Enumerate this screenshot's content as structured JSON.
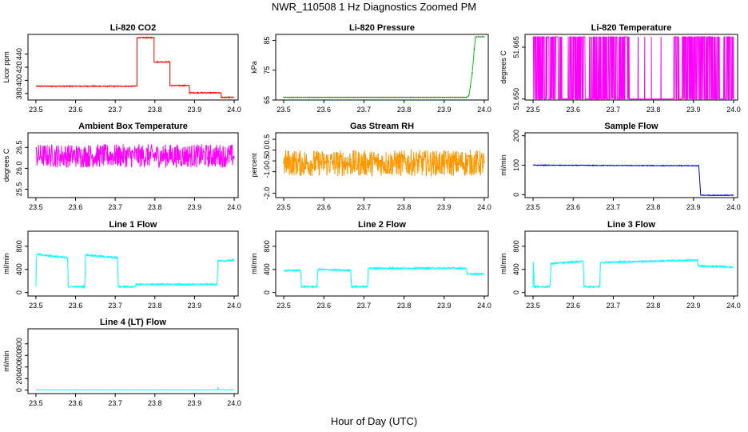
{
  "figure": {
    "title": "NWR_110508  1 Hz Diagnostics Zoomed PM",
    "xlabel": "Hour of Day (UTC)"
  },
  "chart_data": [
    {
      "type": "line",
      "title": "Li-820 CO2",
      "ylabel": "Licor ppm",
      "color": "#ff0000",
      "xlim": [
        23.48,
        24.01
      ],
      "xticks": [
        "23.5",
        "23.6",
        "23.7",
        "23.8",
        "23.9",
        "24.0"
      ],
      "ylim": [
        370,
        470
      ],
      "yticks": [
        "380",
        "400",
        "420",
        "440"
      ],
      "x": [
        23.5,
        23.755,
        23.755,
        23.798,
        23.798,
        23.838,
        23.838,
        23.887,
        23.887,
        23.967,
        23.967,
        24.0
      ],
      "y": [
        391,
        391,
        465,
        465,
        428,
        428,
        392,
        392,
        381,
        381,
        374,
        374
      ],
      "noise": 0.8
    },
    {
      "type": "line",
      "title": "Li-820 Pressure",
      "ylabel": "kPa",
      "color": "#00cc00",
      "xlim": [
        23.48,
        24.01
      ],
      "xticks": [
        "23.5",
        "23.6",
        "23.7",
        "23.8",
        "23.9",
        "24.0"
      ],
      "ylim": [
        65,
        87
      ],
      "yticks": [
        "65",
        "75",
        "85"
      ],
      "x": [
        23.5,
        23.956,
        23.962,
        23.97,
        23.975,
        23.978,
        23.98,
        24.0
      ],
      "y": [
        65.9,
        65.9,
        66.5,
        74,
        82,
        86,
        86.2,
        86.2
      ],
      "noise": 0
    },
    {
      "type": "binary",
      "title": "Li-820 Temperature",
      "ylabel": "degrees C",
      "color": "#ff00ff",
      "xlim": [
        23.48,
        24.01
      ],
      "xticks": [
        "23.5",
        "23.6",
        "23.7",
        "23.8",
        "23.9",
        "24.0"
      ],
      "ylim": [
        51.6497,
        51.6687
      ],
      "yticks": [
        "51.650",
        "51.665"
      ],
      "low": 51.65,
      "high": 51.668,
      "gaps": [
        [
          23.74,
          23.85
        ],
        [
          23.572,
          23.585
        ],
        [
          23.63,
          23.64
        ],
        [
          23.865,
          23.872
        ],
        [
          23.965,
          23.975
        ]
      ]
    },
    {
      "type": "line",
      "title": "Ambient Box Temperature",
      "ylabel": "degrees C",
      "color": "#ff00ff",
      "xlim": [
        23.48,
        24.01
      ],
      "xticks": [
        "23.5",
        "23.6",
        "23.7",
        "23.8",
        "23.9",
        "24.0"
      ],
      "ylim": [
        25.3,
        26.85
      ],
      "yticks": [
        "25.5",
        "26.0",
        "26.5"
      ],
      "x": [
        23.5,
        24.0
      ],
      "y": [
        26.3,
        26.3
      ],
      "noise": 0.28
    },
    {
      "type": "line",
      "title": "Gas Stream RH",
      "ylabel": "percent",
      "color": "#ff9900",
      "xlim": [
        23.48,
        24.01
      ],
      "xticks": [
        "23.5",
        "23.6",
        "23.7",
        "23.8",
        "23.9",
        "24.0"
      ],
      "ylim": [
        -2.2,
        0.8
      ],
      "yticks": [
        "-2.0",
        "-1.0",
        "-0.5",
        "0.0",
        "0.5"
      ],
      "x": [
        23.5,
        24.0
      ],
      "y": [
        -0.6,
        -0.6
      ],
      "noise": 0.6
    },
    {
      "type": "line",
      "title": "Sample Flow",
      "ylabel": "ml/min",
      "color": "#0000cc",
      "xlim": [
        23.48,
        24.01
      ],
      "xticks": [
        "23.5",
        "23.6",
        "23.7",
        "23.8",
        "23.9",
        "24.0"
      ],
      "ylim": [
        -10,
        210
      ],
      "yticks": [
        "0",
        "100",
        "200"
      ],
      "x": [
        23.5,
        23.91,
        23.913,
        23.918,
        24.0
      ],
      "y": [
        100,
        98,
        100,
        -2,
        -2
      ],
      "noise": 1.2
    },
    {
      "type": "line",
      "title": "Line 1 Flow",
      "ylabel": "ml/min",
      "color": "#00ffff",
      "xlim": [
        23.48,
        24.01
      ],
      "xticks": [
        "23.5",
        "23.6",
        "23.7",
        "23.8",
        "23.9",
        "24.0"
      ],
      "ylim": [
        -60,
        1060
      ],
      "yticks": [
        "0",
        "400",
        "800"
      ],
      "x": [
        23.5,
        23.502,
        23.503,
        23.58,
        23.582,
        23.623,
        23.625,
        23.706,
        23.708,
        23.75,
        23.752,
        23.957,
        23.959,
        24.0
      ],
      "y": [
        100,
        650,
        660,
        600,
        100,
        100,
        650,
        600,
        100,
        100,
        140,
        140,
        540,
        560
      ],
      "noise": 14
    },
    {
      "type": "line",
      "title": "Line 2 Flow",
      "ylabel": "ml/min",
      "color": "#00ffff",
      "xlim": [
        23.48,
        24.01
      ],
      "xticks": [
        "23.5",
        "23.6",
        "23.7",
        "23.8",
        "23.9",
        "24.0"
      ],
      "ylim": [
        -60,
        1060
      ],
      "yticks": [
        "0",
        "400",
        "800"
      ],
      "x": [
        23.5,
        23.542,
        23.544,
        23.583,
        23.585,
        23.667,
        23.669,
        23.709,
        23.711,
        23.955,
        23.958,
        24.0
      ],
      "y": [
        380,
        380,
        100,
        100,
        400,
        380,
        100,
        100,
        420,
        420,
        320,
        320
      ],
      "noise": 14
    },
    {
      "type": "line",
      "title": "Line 3 Flow",
      "ylabel": "ml/min",
      "color": "#00ffff",
      "xlim": [
        23.48,
        24.01
      ],
      "xticks": [
        "23.5",
        "23.6",
        "23.7",
        "23.8",
        "23.9",
        "24.0"
      ],
      "ylim": [
        -60,
        1060
      ],
      "yticks": [
        "0",
        "400",
        "800"
      ],
      "x": [
        23.5,
        23.501,
        23.503,
        23.542,
        23.545,
        23.625,
        23.627,
        23.666,
        23.668,
        23.91,
        23.912,
        24.0
      ],
      "y": [
        100,
        540,
        100,
        100,
        500,
        540,
        100,
        100,
        520,
        560,
        460,
        440
      ],
      "noise": 14
    },
    {
      "type": "line",
      "title": "Line 4 (LT) Flow",
      "ylabel": "ml/min",
      "color": "#00ffff",
      "xlim": [
        23.48,
        24.01
      ],
      "xticks": [
        "23.5",
        "23.6",
        "23.7",
        "23.8",
        "23.9",
        "24.0"
      ],
      "ylim": [
        -60,
        1060
      ],
      "yticks": [
        "0",
        "200",
        "400",
        "600",
        "800"
      ],
      "x": [
        23.5,
        23.958,
        23.959,
        23.96,
        23.961,
        24.0
      ],
      "y": [
        5,
        5,
        50,
        20,
        5,
        5
      ],
      "noise": 2
    }
  ]
}
